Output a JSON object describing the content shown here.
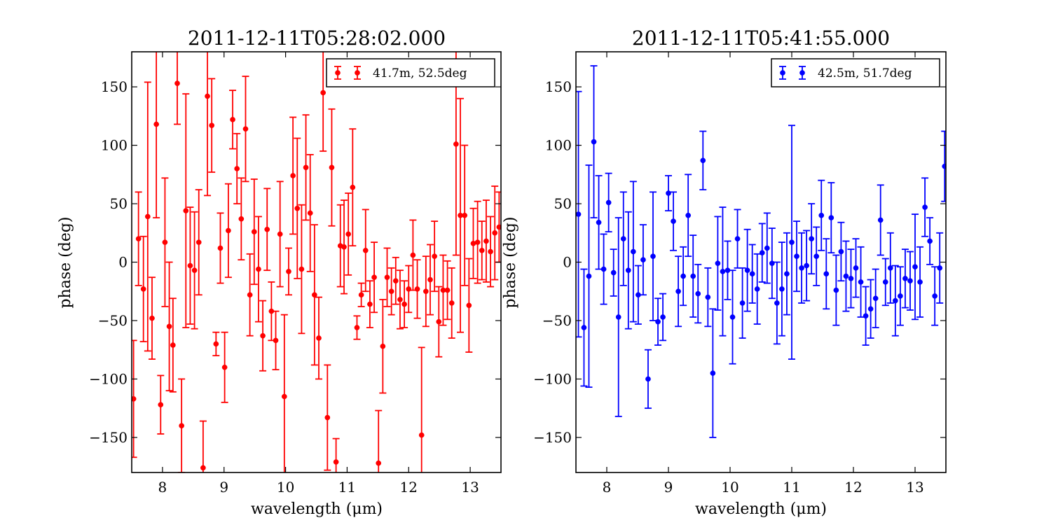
{
  "chart_data": [
    {
      "type": "scatter",
      "title": "2011-12-11T05:28:02.000",
      "xlabel": "wavelength (μm)",
      "ylabel": "phase (deg)",
      "xlim": [
        7.5,
        13.5
      ],
      "ylim": [
        -180,
        180
      ],
      "xticks": [
        8,
        9,
        10,
        11,
        12,
        13
      ],
      "yticks": [
        -150,
        -100,
        -50,
        0,
        50,
        100,
        150
      ],
      "grid": false,
      "legend_position": "top-right",
      "color": "#ff0000",
      "series": [
        {
          "name": "41.7m, 52.5deg",
          "x": [
            7.53,
            7.61,
            7.69,
            7.76,
            7.83,
            7.9,
            7.97,
            8.04,
            8.11,
            8.17,
            8.24,
            8.31,
            8.38,
            8.45,
            8.52,
            8.59,
            8.66,
            8.73,
            8.8,
            8.87,
            8.94,
            9.01,
            9.07,
            9.14,
            9.21,
            9.28,
            9.35,
            9.42,
            9.49,
            9.56,
            9.63,
            9.7,
            9.77,
            9.84,
            9.91,
            9.98,
            10.05,
            10.12,
            10.19,
            10.26,
            10.33,
            10.4,
            10.47,
            10.54,
            10.61,
            10.68,
            10.75,
            10.82,
            10.89,
            10.95,
            11.02,
            11.09,
            11.16,
            11.23,
            11.3,
            11.37,
            11.44,
            11.51,
            11.58,
            11.65,
            11.72,
            11.79,
            11.86,
            11.93,
            12.0,
            12.07,
            12.14,
            12.21,
            12.28,
            12.35,
            12.42,
            12.49,
            12.56,
            12.63,
            12.7,
            12.77,
            12.84,
            12.91,
            12.98,
            13.05,
            13.12,
            13.19,
            13.26,
            13.33,
            13.4,
            13.47
          ],
          "y": [
            -117,
            20,
            -23,
            39,
            -48,
            118,
            -122,
            17,
            -55,
            -71,
            153,
            -140,
            44,
            -3,
            -7,
            17,
            -176,
            142,
            117,
            -70,
            12,
            -90,
            27,
            122,
            80,
            37,
            114,
            -28,
            26,
            -6,
            -63,
            28,
            -42,
            -67,
            24,
            -115,
            -8,
            74,
            46,
            -6,
            81,
            42,
            -28,
            -65,
            145,
            -133,
            81,
            -171,
            14,
            13,
            24,
            64,
            -56,
            -28,
            10,
            -36,
            -13,
            -172,
            -72,
            -13,
            -25,
            -16,
            -32,
            -36,
            -23,
            6,
            -23,
            -148,
            -25,
            -15,
            5,
            -51,
            -24,
            -24,
            -35,
            101,
            40,
            40,
            -37,
            16,
            17,
            10,
            18,
            9,
            25,
            30
          ],
          "err": [
            50,
            40,
            45,
            115,
            35,
            80,
            25,
            55,
            55,
            40,
            35,
            40,
            100,
            50,
            50,
            45,
            40,
            85,
            40,
            10,
            30,
            30,
            40,
            25,
            30,
            35,
            45,
            35,
            45,
            45,
            30,
            35,
            25,
            25,
            45,
            70,
            20,
            50,
            60,
            55,
            45,
            50,
            60,
            35,
            50,
            45,
            50,
            20,
            35,
            40,
            35,
            50,
            10,
            10,
            35,
            20,
            30,
            45,
            40,
            25,
            20,
            20,
            25,
            20,
            20,
            30,
            25,
            75,
            30,
            30,
            30,
            30,
            30,
            25,
            30,
            95,
            100,
            60,
            40,
            30,
            35,
            25,
            35,
            30,
            40,
            30
          ]
        }
      ]
    },
    {
      "type": "scatter",
      "title": "2011-12-11T05:41:55.000",
      "xlabel": "wavelength (μm)",
      "ylabel": "phase (deg)",
      "xlim": [
        7.5,
        13.5
      ],
      "ylim": [
        -180,
        180
      ],
      "xticks": [
        8,
        9,
        10,
        11,
        12,
        13
      ],
      "yticks": [
        -150,
        -100,
        -50,
        0,
        50,
        100,
        150
      ],
      "grid": false,
      "legend_position": "top-right",
      "color": "#0000ff",
      "series": [
        {
          "name": "42.5m, 51.7deg",
          "x": [
            7.54,
            7.63,
            7.71,
            7.79,
            7.87,
            7.95,
            8.03,
            8.11,
            8.19,
            8.27,
            8.35,
            8.43,
            8.51,
            8.59,
            8.67,
            8.75,
            8.83,
            8.91,
            9.0,
            9.08,
            9.16,
            9.24,
            9.32,
            9.4,
            9.48,
            9.56,
            9.64,
            9.72,
            9.8,
            9.88,
            9.96,
            10.04,
            10.12,
            10.2,
            10.28,
            10.36,
            10.44,
            10.52,
            10.6,
            10.68,
            10.76,
            10.84,
            10.92,
            11.0,
            11.08,
            11.16,
            11.24,
            11.32,
            11.4,
            11.48,
            11.56,
            11.64,
            11.72,
            11.8,
            11.88,
            11.96,
            12.04,
            12.12,
            12.2,
            12.28,
            12.36,
            12.44,
            12.52,
            12.6,
            12.68,
            12.76,
            12.84,
            12.92,
            13.0,
            13.08,
            13.16,
            13.24,
            13.32,
            13.4,
            13.48
          ],
          "y": [
            41,
            -56,
            -12,
            103,
            34,
            -6,
            51,
            -9,
            -47,
            20,
            -7,
            9,
            -28,
            2,
            -100,
            5,
            -51,
            -47,
            59,
            35,
            -25,
            -12,
            40,
            -12,
            -27,
            87,
            -30,
            -95,
            -1,
            -8,
            -7,
            -47,
            20,
            -35,
            -7,
            -10,
            -23,
            8,
            12,
            -1,
            -35,
            -23,
            -10,
            17,
            5,
            -5,
            -3,
            20,
            5,
            40,
            -10,
            38,
            -24,
            9,
            -12,
            -14,
            -5,
            -17,
            -46,
            -40,
            -31,
            36,
            -17,
            -5,
            -33,
            -29,
            -14,
            -16,
            -4,
            -17,
            47,
            18,
            -29,
            -5,
            82
          ],
          "err": [
            105,
            50,
            95,
            65,
            40,
            30,
            25,
            20,
            85,
            40,
            50,
            60,
            25,
            30,
            25,
            55,
            20,
            20,
            15,
            25,
            30,
            25,
            35,
            35,
            25,
            25,
            25,
            55,
            40,
            55,
            25,
            40,
            25,
            30,
            35,
            25,
            30,
            25,
            30,
            30,
            35,
            40,
            35,
            100,
            30,
            30,
            30,
            30,
            25,
            30,
            30,
            30,
            30,
            25,
            30,
            25,
            25,
            30,
            25,
            25,
            25,
            30,
            20,
            30,
            30,
            25,
            25,
            25,
            45,
            30,
            25,
            20,
            25,
            30,
            30
          ]
        }
      ]
    }
  ]
}
